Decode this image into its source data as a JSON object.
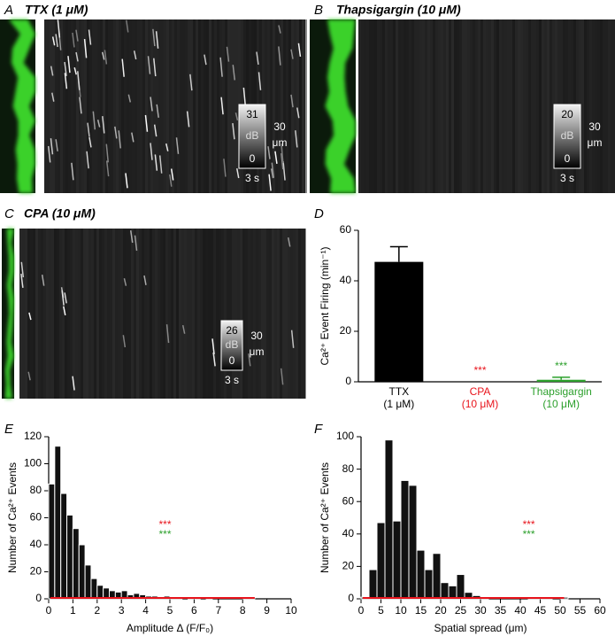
{
  "panels": [
    {
      "letter": "A",
      "title": "TTX (1 μM)",
      "scale": {
        "max": "31",
        "unit": "dB",
        "min": "0",
        "length": "30",
        "length_unit": "μm",
        "time": "3 s"
      }
    },
    {
      "letter": "B",
      "title": "Thapsigargin (10 μM)",
      "scale": {
        "max": "20",
        "unit": "dB",
        "min": "0",
        "length": "30",
        "length_unit": "μm",
        "time": "3 s"
      }
    },
    {
      "letter": "C",
      "title": "CPA (10 μM)",
      "scale": {
        "max": "26",
        "unit": "dB",
        "min": "0",
        "length": "30",
        "length_unit": "μm",
        "time": "3 s"
      }
    }
  ],
  "chart_data": [
    {
      "type": "bar",
      "letter": "D",
      "ylabel": "Ca²⁺ Event Firing (min⁻¹)",
      "categories": [
        "TTX",
        "CPA",
        "Thapsigargin"
      ],
      "category_sublabels": [
        "(1 μM)",
        "(10 μM)",
        "(10 μM)"
      ],
      "colors": [
        "#000000",
        "#e8141c",
        "#2ca02c"
      ],
      "values": [
        47.5,
        0,
        0.8
      ],
      "errors": [
        6,
        0,
        1
      ],
      "significance": [
        null,
        "***",
        "***"
      ],
      "ylim": [
        0,
        60
      ],
      "yticks": [
        0,
        20,
        40,
        60
      ]
    },
    {
      "type": "histogram",
      "letter": "E",
      "xlabel": "Amplitude Δ (F/F₀)",
      "ylabel": "Number of Ca²⁺ Events",
      "bins": [
        0,
        0.25,
        0.5,
        0.75,
        1,
        1.25,
        1.5,
        1.75,
        2,
        2.25,
        2.5,
        2.75,
        3,
        3.25,
        3.5,
        3.75,
        4,
        4.25,
        4.5,
        4.75,
        5,
        5.25,
        5.5,
        5.75,
        6,
        6.25,
        6.5,
        6.75,
        7,
        7.25,
        7.5,
        7.75,
        8,
        8.25,
        8.5,
        8.75,
        9,
        9.25,
        9.5,
        9.75,
        10
      ],
      "counts": [
        85,
        113,
        78,
        62,
        52,
        40,
        25,
        15,
        10,
        8,
        6,
        5,
        6,
        3,
        4,
        3,
        2,
        2,
        1,
        2,
        1,
        1,
        0,
        1,
        1,
        0,
        1,
        0,
        0,
        0,
        0,
        0,
        1,
        1,
        0,
        0,
        0,
        0,
        0,
        0
      ],
      "color": "#111111",
      "significance": [
        {
          "text": "***",
          "color": "#e8141c"
        },
        {
          "text": "***",
          "color": "#2ca02c"
        }
      ],
      "xlim": [
        0,
        10
      ],
      "xticks": [
        0,
        1,
        2,
        3,
        4,
        5,
        6,
        7,
        8,
        9,
        10
      ],
      "ylim": [
        0,
        120
      ],
      "yticks": [
        0,
        20,
        40,
        60,
        80,
        100,
        120
      ]
    },
    {
      "type": "histogram",
      "letter": "F",
      "xlabel": "Spatial spread (μm)",
      "ylabel": "Number of Ca²⁺ Events",
      "bins": [
        0,
        2,
        4,
        6,
        8,
        10,
        12,
        14,
        16,
        18,
        20,
        22,
        24,
        26,
        28,
        30,
        32,
        34,
        36,
        38,
        40,
        42,
        44,
        46,
        48,
        50,
        52,
        54,
        56,
        58,
        60
      ],
      "counts": [
        1,
        18,
        47,
        98,
        48,
        73,
        70,
        30,
        18,
        28,
        10,
        8,
        15,
        4,
        2,
        1,
        0,
        0,
        0,
        0,
        0,
        1,
        1,
        1,
        0,
        1,
        0,
        0,
        0,
        0
      ],
      "color": "#111111",
      "significance": [
        {
          "text": "***",
          "color": "#e8141c"
        },
        {
          "text": "***",
          "color": "#2ca02c"
        }
      ],
      "xlim": [
        0,
        60
      ],
      "xticks": [
        0,
        5,
        10,
        15,
        20,
        25,
        30,
        35,
        40,
        45,
        50,
        55,
        60
      ],
      "ylim": [
        0,
        100
      ],
      "yticks": [
        0,
        20,
        40,
        60,
        80,
        100
      ]
    }
  ]
}
